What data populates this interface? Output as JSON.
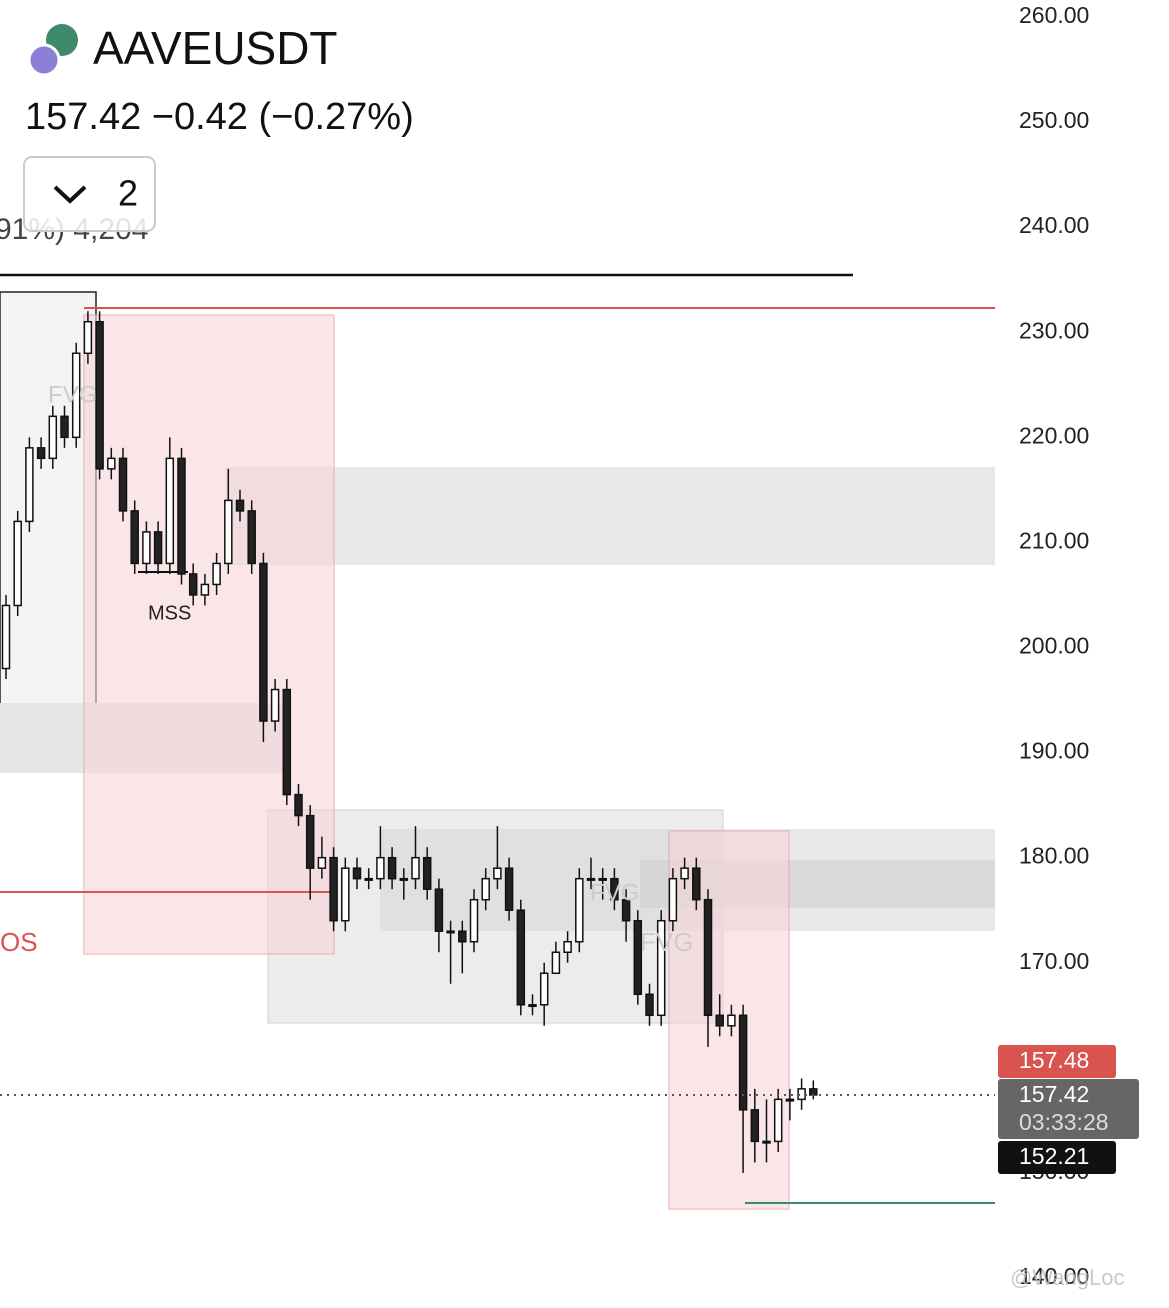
{
  "chart_data": {
    "type": "candlestick",
    "title": "AAVEUSDT",
    "subtitle": "157.42  −0.42 (−0.27%)",
    "indicator_count": "2",
    "hidden_text": "91%) 4,204",
    "annotations": [
      "MSS",
      "OS",
      "FVG",
      "FVG",
      "FVG"
    ],
    "watermark": "@WangLoc",
    "price_labels": {
      "high_price": "157.48",
      "last_price": "157.42",
      "countdown": "03:33:28",
      "low_price": "152.21"
    },
    "ylim": [
      140,
      260
    ],
    "yticks": [
      {
        "value": 260,
        "label": "260.00"
      },
      {
        "value": 250,
        "label": "250.00"
      },
      {
        "value": 240,
        "label": "240.00"
      },
      {
        "value": 230,
        "label": "230.00"
      },
      {
        "value": 220,
        "label": "220.00"
      },
      {
        "value": 210,
        "label": "210.00"
      },
      {
        "value": 200,
        "label": "200.00"
      },
      {
        "value": 190,
        "label": "190.00"
      },
      {
        "value": 180,
        "label": "180.00"
      },
      {
        "value": 170,
        "label": "170.00"
      },
      {
        "value": 150,
        "label": "150.00"
      },
      {
        "value": 140,
        "label": "140.00"
      }
    ],
    "last": 157.42,
    "open": [
      198,
      204,
      212,
      219,
      218,
      222,
      220,
      228,
      231,
      217,
      218,
      213,
      208,
      211,
      208,
      218,
      207,
      205,
      206,
      208,
      214,
      213,
      208,
      193,
      196,
      186,
      184,
      179,
      180,
      174,
      179,
      178,
      178,
      180,
      178,
      178,
      180,
      177,
      173,
      173,
      172,
      176,
      178,
      179,
      175,
      166,
      166,
      169,
      171,
      172,
      178,
      178,
      178,
      176,
      174,
      167,
      165,
      174,
      178,
      179,
      176,
      165,
      164,
      165,
      156,
      153,
      153,
      157,
      157,
      158
    ],
    "high": [
      205,
      213,
      220,
      220,
      223,
      223,
      229,
      232,
      232,
      219,
      219,
      214,
      212,
      212,
      220,
      219,
      208,
      207,
      209,
      217,
      215,
      214,
      209,
      197,
      197,
      187,
      185,
      182,
      181,
      180,
      180,
      179,
      183,
      181,
      179,
      183,
      181,
      178,
      174,
      174,
      177,
      179,
      183,
      180,
      176,
      167,
      170,
      172,
      173,
      179,
      180,
      179,
      179,
      177,
      175,
      168,
      175,
      179,
      180,
      180,
      177,
      167,
      166,
      166,
      158,
      157,
      158,
      158,
      159,
      158.8
    ],
    "low": [
      197,
      203,
      211,
      217,
      217,
      219,
      219,
      227,
      216,
      216,
      212,
      207,
      207,
      207,
      207,
      206,
      204,
      204,
      205,
      207,
      212,
      207,
      191,
      192,
      185,
      183,
      176,
      178,
      173,
      173,
      177,
      177,
      177,
      177,
      176,
      177,
      176,
      171,
      168,
      169,
      171,
      175,
      177,
      174,
      165,
      165,
      164,
      169,
      170,
      171,
      177,
      176,
      175,
      172,
      166,
      164,
      164,
      173,
      177,
      175,
      162,
      163,
      163,
      150,
      151,
      151,
      152,
      155,
      156,
      157
    ],
    "close": [
      204,
      212,
      219,
      218,
      222,
      220,
      228,
      231,
      217,
      218,
      213,
      208,
      211,
      208,
      218,
      207,
      205,
      206,
      208,
      214,
      213,
      208,
      193,
      196,
      186,
      184,
      179,
      180,
      174,
      179,
      178,
      178,
      180,
      178,
      178,
      180,
      177,
      173,
      173,
      172,
      176,
      178,
      179,
      175,
      166,
      166,
      169,
      171,
      172,
      178,
      178,
      178,
      176,
      174,
      167,
      165,
      174,
      178,
      179,
      176,
      165,
      164,
      165,
      156,
      153,
      153,
      157,
      157,
      158,
      157.42
    ]
  }
}
